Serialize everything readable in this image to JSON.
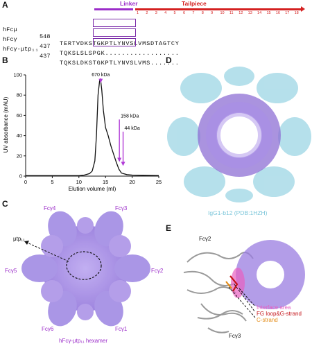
{
  "panels": {
    "a": "A",
    "b": "B",
    "c": "C",
    "d": "D",
    "e": "E"
  },
  "panel_a": {
    "linker_label": "Linker",
    "tailpiece_label": "Tailpiece",
    "positions": [
      "1",
      "2",
      "3",
      "4",
      "5",
      "6",
      "7",
      "8",
      "9",
      "10",
      "11",
      "12",
      "13",
      "14",
      "15",
      "16",
      "17",
      "18"
    ],
    "rows": [
      {
        "name": "hFcμ",
        "start": "548",
        "seq": "TERTVDKSTGKPTLYNVSLVMSDTAGTCY"
      },
      {
        "name": "hFcγ",
        "start": "437",
        "seq": "TQKSLSLSPGK.................."
      },
      {
        "name": "hFcγ-μtp₁₁",
        "start": "437",
        "seq": "TQKSLDKSTGKPTLYNVSLVMS......."
      }
    ]
  },
  "chart_data": {
    "type": "line",
    "title": "",
    "xlabel": "Elution volume (ml)",
    "ylabel": "UV absorbance (mAU)",
    "xlim": [
      0,
      25
    ],
    "ylim": [
      0,
      100
    ],
    "xticks": [
      0,
      5,
      10,
      15,
      20,
      25
    ],
    "yticks": [
      0,
      20,
      40,
      60,
      80,
      100
    ],
    "series": [
      {
        "x": [
          0,
          5,
          10,
          11,
          12,
          12.5,
          13,
          13.3,
          13.6,
          13.9,
          14.1,
          14.3,
          14.6,
          15,
          15.5,
          16,
          16.5,
          17,
          17.5,
          18,
          19,
          20,
          22,
          25
        ],
        "y": [
          0.5,
          0.5,
          0.5,
          1,
          2.5,
          5,
          15,
          40,
          80,
          95,
          94,
          85,
          65,
          48,
          40,
          30,
          22,
          14,
          7,
          3,
          1.5,
          1,
          0.8,
          0.6
        ]
      }
    ],
    "annotations": [
      {
        "label": "670 kDa",
        "x": 14.1
      },
      {
        "label": "158 kDa",
        "x": 17.6
      },
      {
        "label": "44 kDa",
        "x": 18.3
      }
    ],
    "grid": false
  },
  "panel_c": {
    "chains": [
      "Fcγ4",
      "Fcγ3",
      "Fcγ5",
      "Fcγ2",
      "Fcγ6",
      "Fcγ1"
    ],
    "tail_label": "μtp₁₁",
    "caption": "hFcγ-μtp₁₁ hexamer"
  },
  "panel_d": {
    "caption": "IgG1-b12 (PDB:1HZH)"
  },
  "panel_e": {
    "top_label": "Fcγ2",
    "bottom_label": "Fcγ3",
    "legend": [
      {
        "text": "Interface area",
        "color": "#e85fc0"
      },
      {
        "text": "FG loop&G-strand",
        "color": "#c4141a"
      },
      {
        "text": "C-strand",
        "color": "#e38a14"
      }
    ]
  },
  "colors": {
    "purple": "#9b2cc9",
    "lavender": "#9a7ce0",
    "light_blue": "#9fd6e4",
    "red": "#d42020"
  }
}
